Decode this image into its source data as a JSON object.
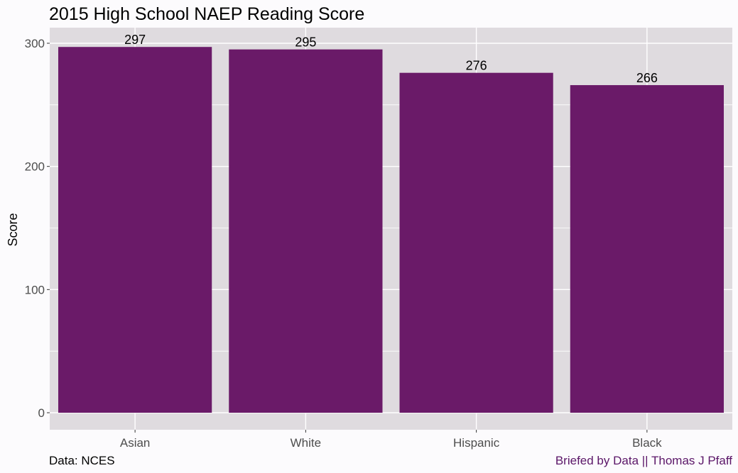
{
  "chart_data": {
    "type": "bar",
    "title": "2015 High School NAEP Reading Score",
    "xlabel": "",
    "ylabel": "Score",
    "categories": [
      "Asian",
      "White",
      "Hispanic",
      "Black"
    ],
    "values": [
      297,
      295,
      276,
      266
    ],
    "data_labels": [
      "297",
      "295",
      "276",
      "266"
    ],
    "ylim": [
      0,
      310
    ],
    "yticks": [
      0,
      100,
      200,
      300
    ],
    "ytick_labels": [
      "0",
      "100",
      "200",
      "300"
    ],
    "grid": true,
    "legend": "none"
  },
  "caption": {
    "source": "Data: NCES",
    "credit": "Briefed by Data || Thomas J Pfaff"
  },
  "colors": {
    "bar": "#6a1a68",
    "panel": "#dfdbdf",
    "grid": "#ffffff",
    "credit": "#5b1668"
  }
}
